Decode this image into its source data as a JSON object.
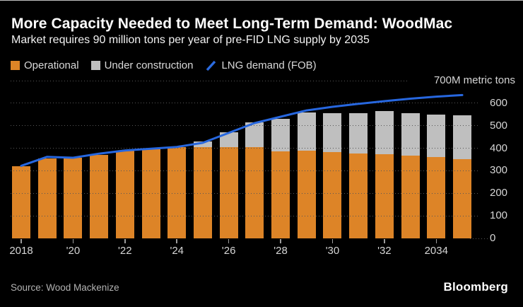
{
  "header": {
    "title": "More Capacity Needed to Meet Long-Term Demand: WoodMac",
    "subtitle": "Market requires 90 million tons per year of pre-FID LNG supply by 2035"
  },
  "legend": {
    "items": [
      {
        "label": "Operational",
        "marker": "square",
        "color": "#DD8427"
      },
      {
        "label": "Under construction",
        "marker": "square",
        "color": "#BFBFBF"
      },
      {
        "label": "LNG demand (FOB)",
        "marker": "line",
        "color": "#2B6BE0"
      }
    ]
  },
  "chart_data": {
    "type": "bar",
    "subtype": "stacked-bars-with-line",
    "title": "More Capacity Needed to Meet Long-Term Demand: WoodMac",
    "categories": [
      2018,
      2019,
      2020,
      2021,
      2022,
      2023,
      2024,
      2025,
      2026,
      2027,
      2028,
      2029,
      2030,
      2031,
      2032,
      2033,
      2034,
      2035
    ],
    "series": [
      {
        "name": "Operational",
        "type": "bar",
        "color": "#DD8427",
        "values": [
          320,
          355,
          358,
          372,
          390,
          398,
          406,
          405,
          406,
          404,
          385,
          388,
          382,
          378,
          374,
          366,
          360,
          353
        ]
      },
      {
        "name": "Under construction",
        "type": "bar",
        "color": "#BFBFBF",
        "values": [
          0,
          0,
          0,
          0,
          0,
          0,
          0,
          25,
          65,
          110,
          146,
          170,
          174,
          178,
          192,
          189,
          190,
          193
        ]
      },
      {
        "name": "LNG demand (FOB)",
        "type": "line",
        "color": "#2767DF",
        "values": [
          322,
          362,
          358,
          376,
          390,
          398,
          406,
          424,
          468,
          512,
          540,
          568,
          584,
          597,
          609,
          620,
          629,
          636
        ]
      }
    ],
    "ylim": [
      0,
      700
    ],
    "y_axis": {
      "step": 100,
      "tick_labels": [
        "0",
        "100",
        "200",
        "300",
        "400",
        "500",
        "600"
      ],
      "top_label": "700M metric tons",
      "unit": "M metric tons",
      "side": "right"
    },
    "x_axis": {
      "tick_years": [
        2018,
        2020,
        2022,
        2024,
        2026,
        2028,
        2030,
        2032,
        2034
      ],
      "tick_labels": [
        "2018",
        "'20",
        "'22",
        "'24",
        "'26",
        "'28",
        "'30",
        "'32",
        "2034"
      ]
    },
    "grid": "dotted-horizontal",
    "legend_position": "top-left",
    "background": "#000000"
  },
  "footer": {
    "source": "Source: Wood Mackenize",
    "brand": "Bloomberg"
  }
}
